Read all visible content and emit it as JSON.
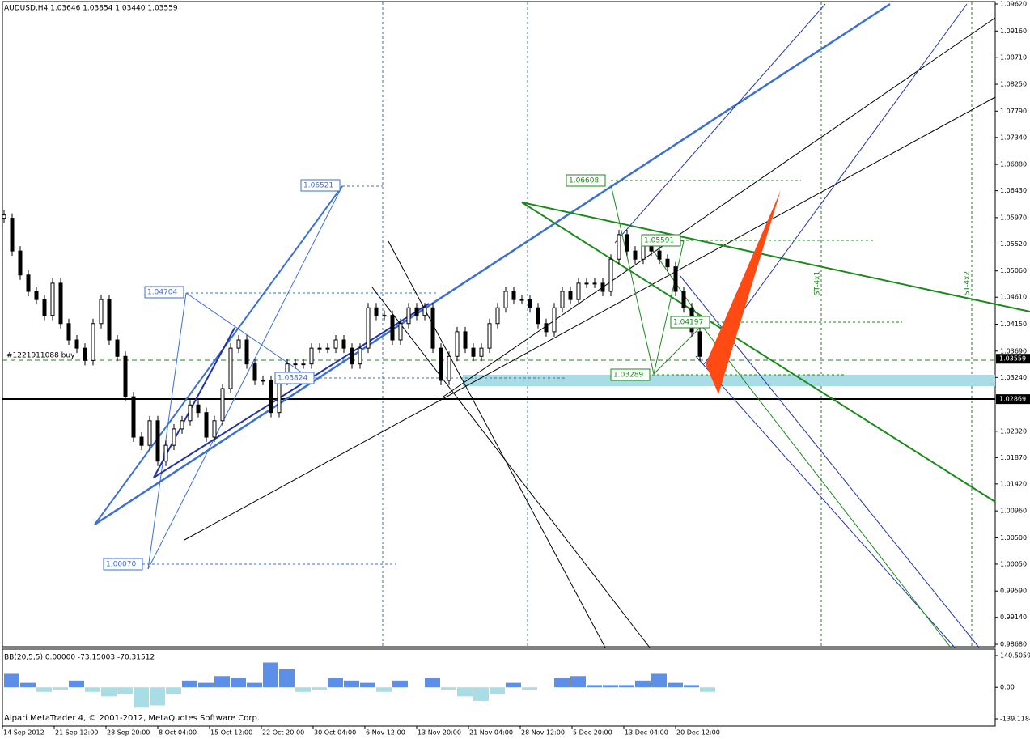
{
  "header": {
    "symbol_info": "AUDUSD,H4  1.03646 1.03854 1.03440 1.03559"
  },
  "price_axis": {
    "ylim": [
      0.9868,
      1.0962
    ],
    "yticks": [
      {
        "value": 1.0962,
        "label": "1.09620"
      },
      {
        "value": 1.0916,
        "label": "1.09160"
      },
      {
        "value": 1.0871,
        "label": "1.08710"
      },
      {
        "value": 1.0825,
        "label": "1.08250"
      },
      {
        "value": 1.0779,
        "label": "1.07790"
      },
      {
        "value": 1.0734,
        "label": "1.07340"
      },
      {
        "value": 1.0688,
        "label": "1.06880"
      },
      {
        "value": 1.0643,
        "label": "1.06430"
      },
      {
        "value": 1.0597,
        "label": "1.05970"
      },
      {
        "value": 1.0552,
        "label": "1.05520"
      },
      {
        "value": 1.0506,
        "label": "1.05060"
      },
      {
        "value": 1.0461,
        "label": "1.04610"
      },
      {
        "value": 1.0415,
        "label": "1.04150"
      },
      {
        "value": 1.0369,
        "label": "1.03690"
      },
      {
        "value": 1.0324,
        "label": "1.03240"
      },
      {
        "value": 1.0232,
        "label": "1.02320"
      },
      {
        "value": 1.0187,
        "label": "1.01870"
      },
      {
        "value": 1.0142,
        "label": "1.01420"
      },
      {
        "value": 1.0096,
        "label": "1.00960"
      },
      {
        "value": 1.005,
        "label": "1.00500"
      },
      {
        "value": 1.0005,
        "label": "1.00050"
      },
      {
        "value": 0.9959,
        "label": "0.99590"
      },
      {
        "value": 0.9914,
        "label": "0.99140"
      },
      {
        "value": 0.9868,
        "label": "0.98680"
      }
    ]
  },
  "time_axis": {
    "labels": [
      "14 Sep 2012",
      "21 Sep 12:00",
      "28 Sep 20:00",
      "8 Oct 04:00",
      "15 Oct 12:00",
      "22 Oct 20:00",
      "30 Oct 04:00",
      "6 Nov 12:00",
      "13 Nov 20:00",
      "21 Nov 04:00",
      "28 Nov 12:00",
      "5 Dec 20:00",
      "13 Dec 04:00",
      "20 Dec 12:00"
    ]
  },
  "candles": {
    "closes": [
      1.0596,
      1.054,
      1.0499,
      1.0471,
      1.0457,
      1.043,
      1.0485,
      1.0416,
      1.0388,
      1.0374,
      1.0353,
      1.0416,
      1.0457,
      1.0388,
      1.036,
      1.0291,
      1.0222,
      1.0208,
      1.025,
      1.0181,
      1.0208,
      1.0236,
      1.025,
      1.0277,
      1.0264,
      1.0222,
      1.025,
      1.0305,
      1.0374,
      1.0388,
      1.0347,
      1.0319,
      1.0319,
      1.0264,
      1.0319,
      1.0347,
      1.0347,
      1.0347,
      1.0374,
      1.0374,
      1.0374,
      1.0388,
      1.0374,
      1.0347,
      1.0374,
      1.0443,
      1.043,
      1.043,
      1.0388,
      1.0416,
      1.0443,
      1.043,
      1.0443,
      1.0374,
      1.0319,
      1.036,
      1.0402,
      1.0374,
      1.036,
      1.0374,
      1.0416,
      1.0443,
      1.0471,
      1.0457,
      1.0457,
      1.0443,
      1.0416,
      1.0402,
      1.0443,
      1.0471,
      1.0457,
      1.0485,
      1.0485,
      1.0485,
      1.0471,
      1.0526,
      1.0568,
      1.054,
      1.0526,
      1.0554,
      1.054,
      1.0526,
      1.0513,
      1.0471,
      1.0443,
      1.0402,
      1.036
    ]
  },
  "annotations": {
    "price_labels": [
      "1.06521",
      "1.04704",
      "1.00070",
      "1.03824",
      "1.06608",
      "1.05591",
      "1.04197",
      "1.03289"
    ],
    "order_label": "#1221911088 buy",
    "vertical_labels": [
      "ST-4x1",
      "ST-4x2"
    ]
  },
  "price_tags": [
    {
      "value": 1.03559,
      "label": "1.03559"
    },
    {
      "value": 1.02869,
      "label": "1.02869"
    }
  ],
  "indicator": {
    "title": "BB(20,5,5) 0.00000 -73.15003 -70.31512",
    "ylim": [
      -139.1184,
      140.5059
    ],
    "yticks": [
      {
        "value": 140.5059,
        "label": "140.5059"
      },
      {
        "value": 0,
        "label": "0.00"
      },
      {
        "value": -139.1184,
        "label": "-139.1184"
      }
    ],
    "values": [
      60,
      20,
      -20,
      -10,
      30,
      -20,
      -40,
      -30,
      -90,
      -80,
      -30,
      30,
      20,
      50,
      40,
      20,
      110,
      80,
      -20,
      -10,
      40,
      30,
      20,
      -20,
      30,
      0,
      40,
      -10,
      -40,
      -60,
      -30,
      20,
      -10,
      0,
      40,
      50,
      10,
      10,
      10,
      30,
      60,
      20,
      10,
      -20
    ]
  },
  "footer": "Alpari MetaTrader 4, © 2001-2012, MetaQuotes Software Corp."
}
